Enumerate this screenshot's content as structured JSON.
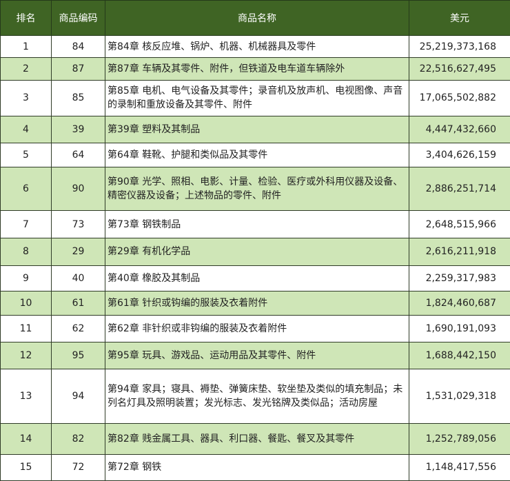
{
  "table": {
    "headers": {
      "rank": "排名",
      "code": "商品编码",
      "name": "商品名称",
      "usd": "美元"
    },
    "rows": [
      {
        "rank": "1",
        "code": "84",
        "name": "第84章 核反应堆、锅炉、机器、机械器具及零件",
        "usd": "25,219,373,168"
      },
      {
        "rank": "2",
        "code": "87",
        "name": "第87章 车辆及其零件、附件，但铁道及电车道车辆除外",
        "usd": "22,516,627,495"
      },
      {
        "rank": "3",
        "code": "85",
        "name": "第85章 电机、电气设备及其零件；录音机及放声机、电视图像、声音的录制和重放设备及其零件、附件",
        "usd": "17,065,502,882"
      },
      {
        "rank": "4",
        "code": "39",
        "name": "第39章 塑料及其制品",
        "usd": "4,447,432,660"
      },
      {
        "rank": "5",
        "code": "64",
        "name": "第64章 鞋靴、护腿和类似品及其零件",
        "usd": "3,404,626,159"
      },
      {
        "rank": "6",
        "code": "90",
        "name": "第90章 光学、照相、电影、计量、检验、医疗或外科用仪器及设备、精密仪器及设备；上述物品的零件、附件",
        "usd": "2,886,251,714"
      },
      {
        "rank": "7",
        "code": "73",
        "name": "第73章 钢铁制品",
        "usd": "2,648,515,966"
      },
      {
        "rank": "8",
        "code": "29",
        "name": "第29章 有机化学品",
        "usd": "2,616,211,918"
      },
      {
        "rank": "9",
        "code": "40",
        "name": "第40章 橡胶及其制品",
        "usd": "2,259,317,983"
      },
      {
        "rank": "10",
        "code": "61",
        "name": "第61章 针织或钩编的服装及衣着附件",
        "usd": "1,824,460,687"
      },
      {
        "rank": "11",
        "code": "62",
        "name": "第62章 非针织或非钩编的服装及衣着附件",
        "usd": "1,690,191,093"
      },
      {
        "rank": "12",
        "code": "95",
        "name": "第95章 玩具、游戏品、运动用品及其零件、附件",
        "usd": "1,688,442,150"
      },
      {
        "rank": "13",
        "code": "94",
        "name": "第94章 家具；寝具、褥垫、弹簧床垫、软坐垫及类似的填充制品；未列名灯具及照明装置；发光标志、发光铭牌及类似品；活动房屋",
        "usd": "1,531,029,318"
      },
      {
        "rank": "14",
        "code": "82",
        "name": "第82章 贱金属工具、器具、利口器、餐匙、餐叉及其零件",
        "usd": "1,252,789,056"
      },
      {
        "rank": "15",
        "code": "72",
        "name": "第72章 钢铁",
        "usd": "1,148,417,556"
      }
    ]
  }
}
